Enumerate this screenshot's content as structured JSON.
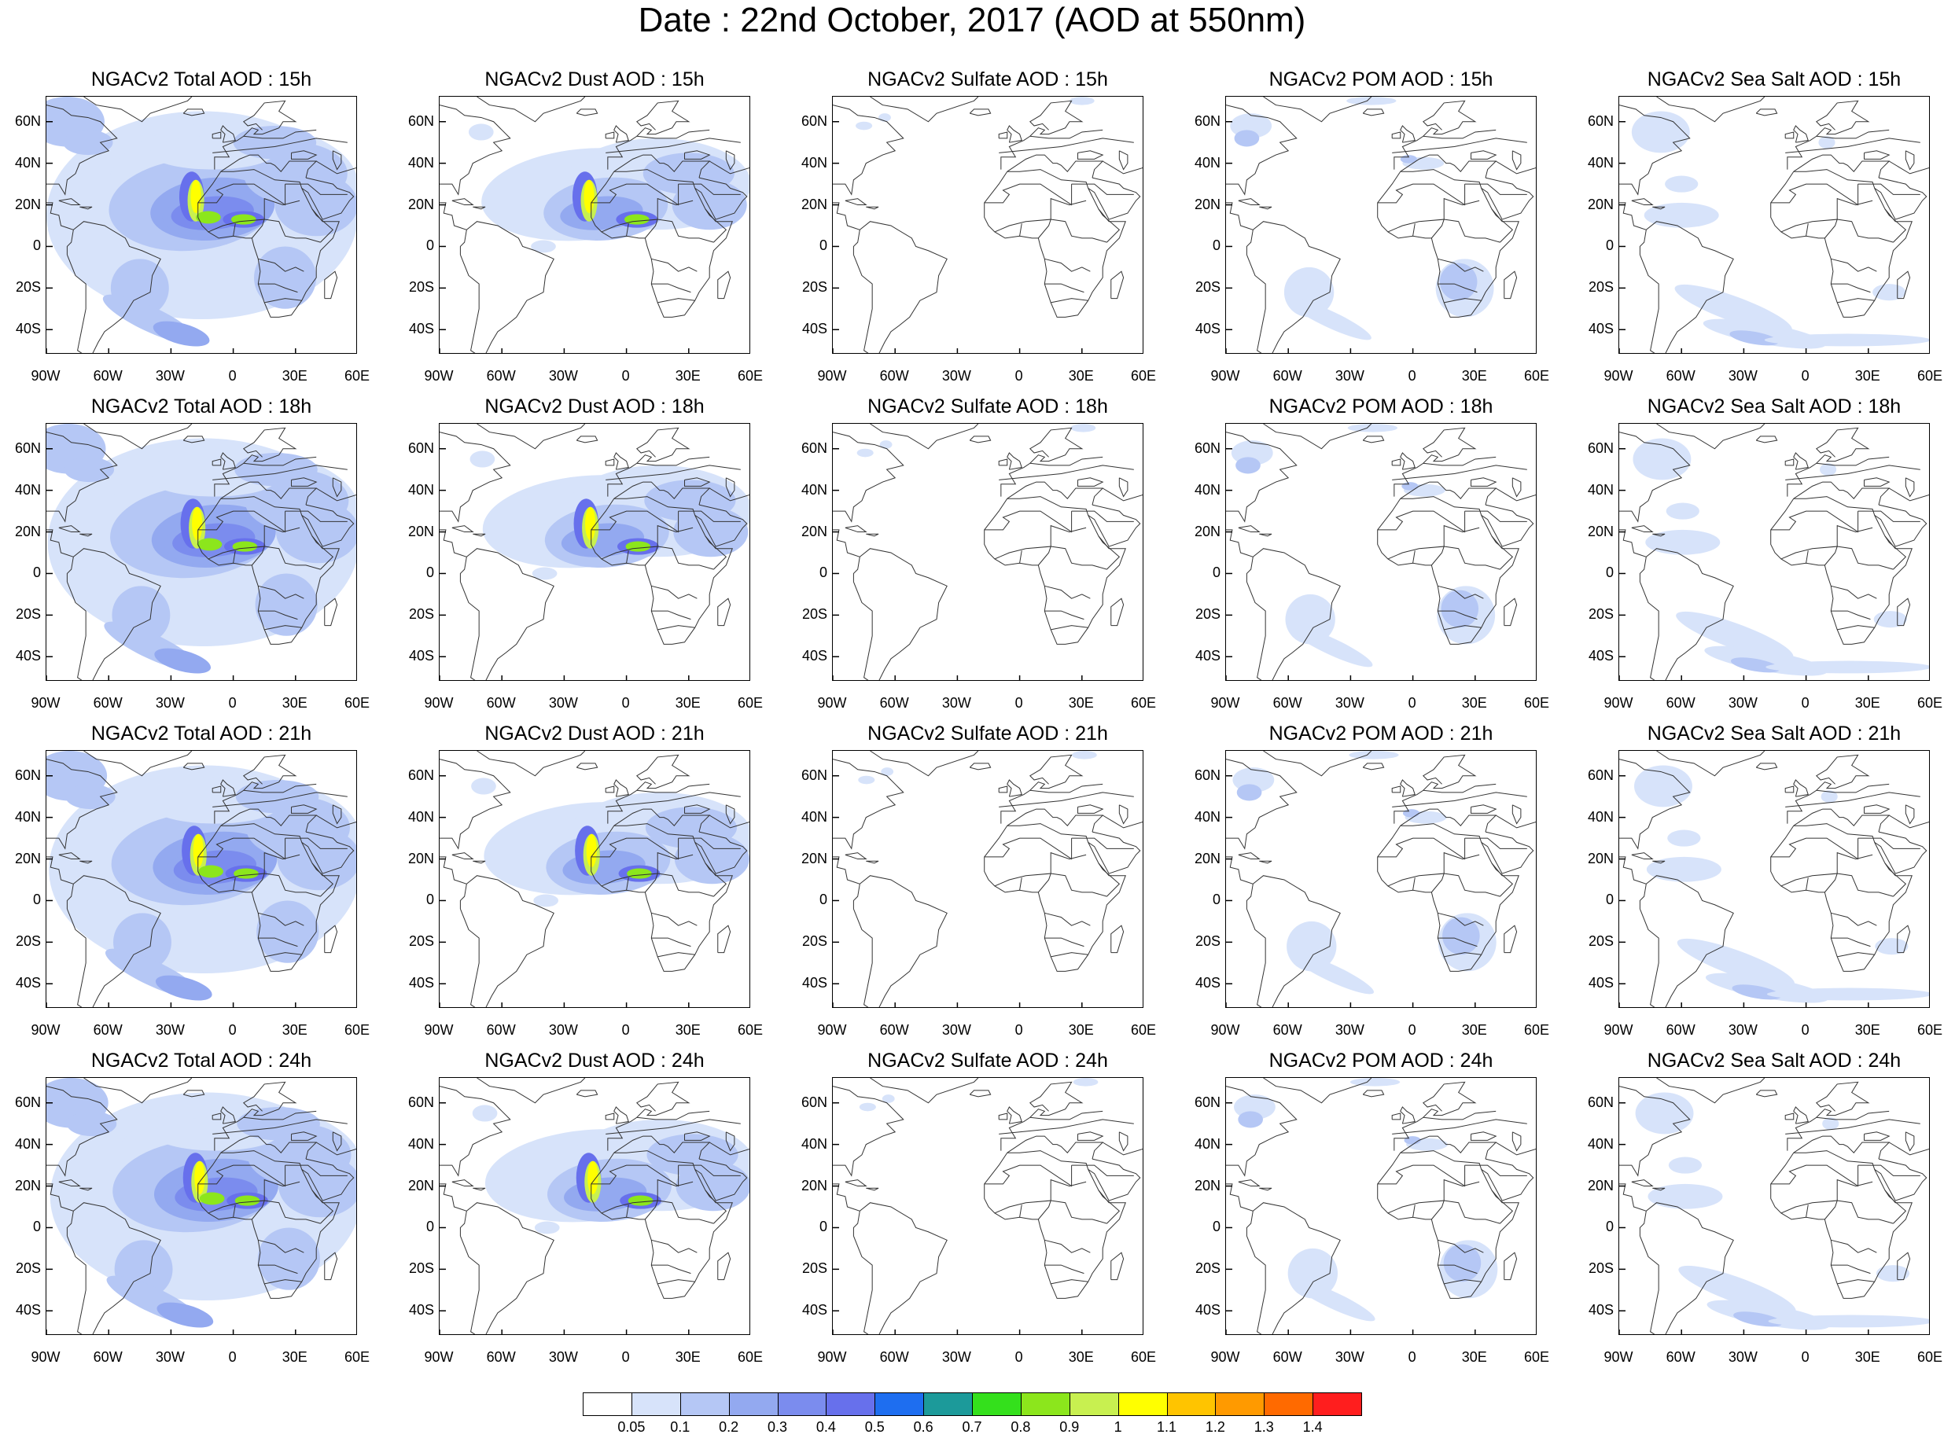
{
  "title": "Date : 22nd October, 2017 (AOD at 550nm)",
  "axes": {
    "lat_labels": [
      "60N",
      "40N",
      "20N",
      "0",
      "20S",
      "40S"
    ],
    "lon_labels": [
      "90W",
      "60W",
      "30W",
      "0",
      "30E",
      "60E"
    ],
    "lat_values": [
      60,
      40,
      20,
      0,
      -20,
      -40
    ],
    "lon_values": [
      -90,
      -60,
      -30,
      0,
      30,
      60
    ],
    "lat_range": [
      -52,
      72
    ],
    "lon_range": [
      -90,
      60
    ]
  },
  "colors": {
    "fill_levels": [
      "#ffffff",
      "#d7e3fa",
      "#b5c7f5",
      "#93a9f0",
      "#7b8cee",
      "#6770ec",
      "#1e6ef0",
      "#1c9a9a",
      "#34e01c",
      "#8ce61c",
      "#c8f050",
      "#ffff00",
      "#ffc400",
      "#ff9a00",
      "#ff6a00",
      "#ff1e1e"
    ]
  },
  "panels": [
    {
      "title": "NGACv2 Total AOD : 15h",
      "species": "total",
      "hour": 15
    },
    {
      "title": "NGACv2 Dust AOD : 15h",
      "species": "dust",
      "hour": 15
    },
    {
      "title": "NGACv2 Sulfate AOD : 15h",
      "species": "sulfate",
      "hour": 15
    },
    {
      "title": "NGACv2 POM AOD : 15h",
      "species": "pom",
      "hour": 15
    },
    {
      "title": "NGACv2 Sea Salt AOD : 15h",
      "species": "seasalt",
      "hour": 15
    },
    {
      "title": "NGACv2 Total AOD : 18h",
      "species": "total",
      "hour": 18
    },
    {
      "title": "NGACv2 Dust AOD : 18h",
      "species": "dust",
      "hour": 18
    },
    {
      "title": "NGACv2 Sulfate AOD : 18h",
      "species": "sulfate",
      "hour": 18
    },
    {
      "title": "NGACv2 POM AOD : 18h",
      "species": "pom",
      "hour": 18
    },
    {
      "title": "NGACv2 Sea Salt AOD : 18h",
      "species": "seasalt",
      "hour": 18
    },
    {
      "title": "NGACv2 Total AOD : 21h",
      "species": "total",
      "hour": 21
    },
    {
      "title": "NGACv2 Dust AOD : 21h",
      "species": "dust",
      "hour": 21
    },
    {
      "title": "NGACv2 Sulfate AOD : 21h",
      "species": "sulfate",
      "hour": 21
    },
    {
      "title": "NGACv2 POM AOD : 21h",
      "species": "pom",
      "hour": 21
    },
    {
      "title": "NGACv2 Sea Salt AOD : 21h",
      "species": "seasalt",
      "hour": 21
    },
    {
      "title": "NGACv2 Total AOD : 24h",
      "species": "total",
      "hour": 24
    },
    {
      "title": "NGACv2 Dust AOD : 24h",
      "species": "dust",
      "hour": 24
    },
    {
      "title": "NGACv2 Sulfate AOD : 24h",
      "species": "sulfate",
      "hour": 24
    },
    {
      "title": "NGACv2 POM AOD : 24h",
      "species": "pom",
      "hour": 24
    },
    {
      "title": "NGACv2 Sea Salt  AOD : 24h",
      "species": "seasalt",
      "hour": 24
    }
  ],
  "colorbar": {
    "labels": [
      "0.05",
      "0.1",
      "0.2",
      "0.3",
      "0.4",
      "0.5",
      "0.6",
      "0.7",
      "0.8",
      "0.9",
      "1",
      "1.1",
      "1.2",
      "1.3",
      "1.4"
    ],
    "colors": [
      "#ffffff",
      "#d7e3fa",
      "#b5c7f5",
      "#93a9f0",
      "#7b8cee",
      "#6770ec",
      "#1e6ef0",
      "#1c9a9a",
      "#34e01c",
      "#8ce61c",
      "#c8f050",
      "#ffff00",
      "#ffc400",
      "#ff9a00",
      "#ff6a00",
      "#ff1e1e"
    ]
  }
}
